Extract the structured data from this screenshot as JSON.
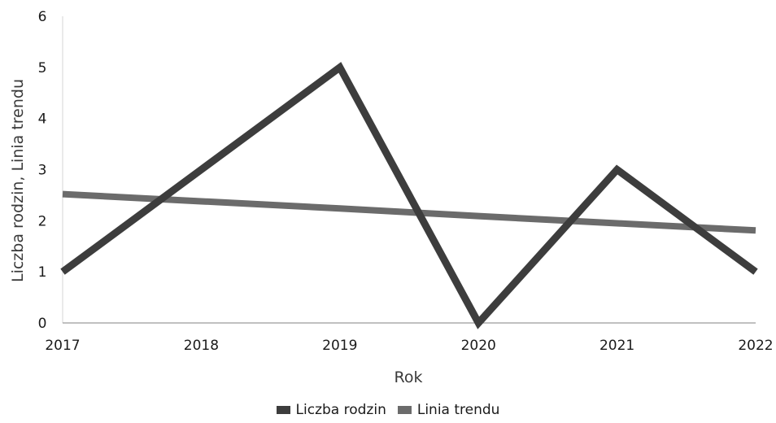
{
  "chart_data": {
    "type": "line",
    "x": [
      "2017",
      "2018",
      "2019",
      "2020",
      "2021",
      "2022"
    ],
    "series": [
      {
        "name": "Liczba rodzin",
        "values": [
          1,
          3,
          5,
          0,
          3,
          1
        ],
        "color": "#3d3d3d"
      },
      {
        "name": "Linia trendu",
        "values": [
          2.52,
          2.38,
          2.24,
          2.09,
          1.95,
          1.81
        ],
        "color": "#6b6b6b"
      }
    ],
    "yticks": [
      "0",
      "1",
      "2",
      "3",
      "4",
      "5",
      "6"
    ],
    "ylim": [
      0,
      6
    ],
    "xlabel": "Rok",
    "ylabel": "Liczba rodzin, Linia trendu",
    "legend_position": "bottom",
    "grid": false
  }
}
